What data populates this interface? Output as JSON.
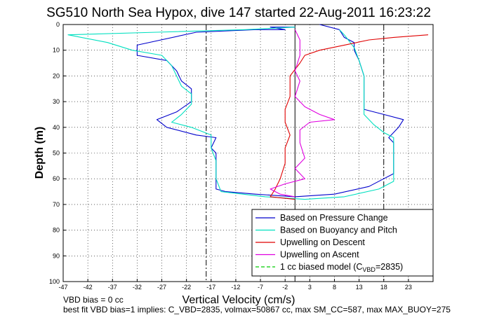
{
  "chart_data": {
    "type": "line",
    "title": "SG510 North Sea Hypox, dive 147 started 22-Aug-2011 16:23:22",
    "xlabel": "Vertical Velocity (cm/s)",
    "ylabel": "Depth (m)",
    "xlim": [
      -47,
      28
    ],
    "ylim": [
      0,
      100
    ],
    "y_reversed": true,
    "grid": true,
    "x_ticks": [
      -47,
      -42,
      -37,
      -32,
      -27,
      -22,
      -17,
      -12,
      -7,
      -2,
      3,
      8,
      13,
      18,
      23
    ],
    "y_ticks": [
      0,
      10,
      20,
      30,
      40,
      50,
      60,
      70,
      80,
      90,
      100
    ],
    "legend_position": "bottom-right",
    "vertical_lines": [
      {
        "x": 0,
        "style": "solid"
      },
      {
        "x": -18,
        "style": "dash-dot"
      },
      {
        "x": 18,
        "style": "dash-dot"
      }
    ],
    "series": [
      {
        "name": "Based on Pressure Change",
        "color": "#0000cc",
        "style": "solid",
        "points": [
          [
            0,
            1
          ],
          [
            -5,
            1
          ],
          [
            -2,
            2
          ],
          [
            -8,
            2
          ],
          [
            -20,
            3
          ],
          [
            -32,
            8
          ],
          [
            -32,
            12
          ],
          [
            -26,
            14
          ],
          [
            -24,
            18
          ],
          [
            -23,
            22
          ],
          [
            -21,
            25
          ],
          [
            -21,
            30
          ],
          [
            -24,
            34
          ],
          [
            -28,
            37
          ],
          [
            -26,
            40
          ],
          [
            -20,
            43
          ],
          [
            -16,
            44
          ],
          [
            -17,
            48
          ],
          [
            -16,
            50
          ],
          [
            -16,
            55
          ],
          [
            -16,
            60
          ],
          [
            -16,
            64
          ],
          [
            -14,
            65
          ],
          [
            -8,
            66
          ],
          [
            0,
            67
          ],
          [
            8,
            66
          ],
          [
            15,
            63
          ],
          [
            18,
            60
          ],
          [
            20,
            58
          ],
          [
            20,
            52
          ],
          [
            20,
            46
          ],
          [
            19,
            44
          ],
          [
            21,
            40
          ],
          [
            22,
            37
          ],
          [
            18,
            35
          ],
          [
            14,
            33
          ],
          [
            14,
            28
          ],
          [
            14,
            20
          ],
          [
            13,
            14
          ],
          [
            12,
            10
          ],
          [
            12,
            7
          ],
          [
            10,
            5
          ],
          [
            9,
            2
          ],
          [
            5,
            0
          ]
        ]
      },
      {
        "name": "Based on Buoyancy and Pitch",
        "color": "#00e0c0",
        "style": "solid",
        "points": [
          [
            0,
            1
          ],
          [
            -10,
            2
          ],
          [
            -28,
            3
          ],
          [
            -46,
            4
          ],
          [
            -38,
            7
          ],
          [
            -33,
            10
          ],
          [
            -27,
            12
          ],
          [
            -25,
            16
          ],
          [
            -24,
            20
          ],
          [
            -23,
            24
          ],
          [
            -21,
            27
          ],
          [
            -21,
            31
          ],
          [
            -23,
            35
          ],
          [
            -25,
            38
          ],
          [
            -21,
            40
          ],
          [
            -17,
            43
          ],
          [
            -17,
            48
          ],
          [
            -16,
            53
          ],
          [
            -16,
            60
          ],
          [
            -15,
            65
          ],
          [
            -6,
            67
          ],
          [
            2,
            68
          ],
          [
            10,
            67
          ],
          [
            17,
            64
          ],
          [
            20,
            61
          ],
          [
            20,
            55
          ],
          [
            20,
            47
          ],
          [
            20,
            44
          ],
          [
            18,
            42
          ],
          [
            16,
            39
          ],
          [
            14,
            35
          ],
          [
            14,
            28
          ],
          [
            14,
            20
          ],
          [
            13,
            14
          ],
          [
            12,
            9
          ],
          [
            10,
            4
          ],
          [
            9,
            2
          ]
        ]
      },
      {
        "name": "Upwelling on Descent",
        "color": "#e00000",
        "style": "solid",
        "points": [
          [
            27,
            4
          ],
          [
            20,
            5
          ],
          [
            15,
            6
          ],
          [
            10,
            8
          ],
          [
            5,
            10
          ],
          [
            2,
            12
          ],
          [
            1,
            15
          ],
          [
            -1,
            20
          ],
          [
            -1,
            28
          ],
          [
            -2,
            33
          ],
          [
            -2,
            38
          ],
          [
            -1,
            43
          ],
          [
            -2,
            48
          ],
          [
            -2,
            54
          ],
          [
            -3,
            60
          ],
          [
            -4,
            64
          ],
          [
            -5,
            67
          ],
          [
            0,
            68
          ]
        ]
      },
      {
        "name": "Upwelling on Ascent",
        "color": "#e000e0",
        "style": "solid",
        "points": [
          [
            0,
            2
          ],
          [
            1,
            6
          ],
          [
            1,
            12
          ],
          [
            0,
            18
          ],
          [
            1,
            22
          ],
          [
            0,
            28
          ],
          [
            2,
            32
          ],
          [
            5,
            35
          ],
          [
            8,
            37
          ],
          [
            3,
            38
          ],
          [
            1,
            41
          ],
          [
            1,
            46
          ],
          [
            2,
            52
          ],
          [
            0,
            56
          ],
          [
            2,
            60
          ],
          [
            -2,
            62
          ],
          [
            -5,
            64
          ],
          [
            -3,
            66
          ],
          [
            0,
            67
          ]
        ]
      },
      {
        "name": "1 cc biased model (C",
        "name_sub": "VBD",
        "name_suffix": "=2835)",
        "color": "#00cc00",
        "style": "dashed",
        "points": []
      }
    ]
  },
  "footer": {
    "line1": "VBD bias = 0 cc",
    "line2": "best fit VBD bias=1 implies: C_VBD=2835, volmax=50867 cc, max SM_CC=587, max MAX_BUOY=275"
  }
}
